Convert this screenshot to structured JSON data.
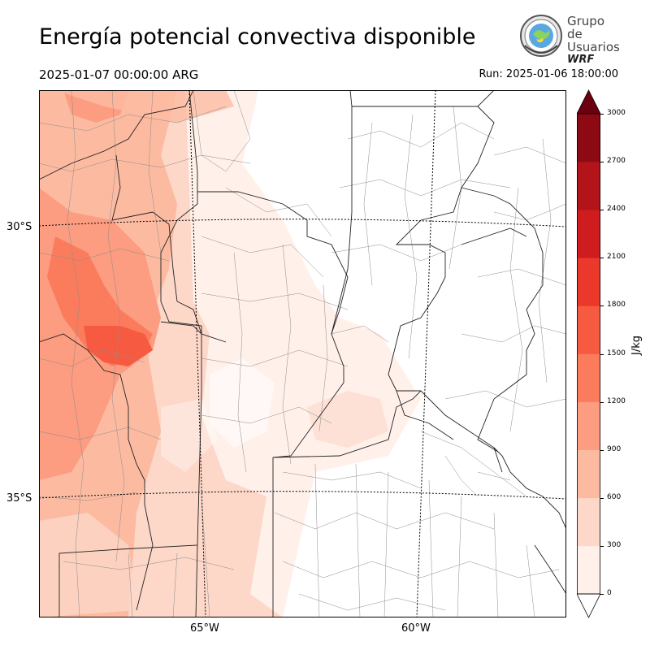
{
  "header": {
    "title": "Energía potencial convectiva disponible",
    "valid_time": "2025-01-07 00:00:00 ARG",
    "run_time": "Run: 2025-01-06 18:00:00"
  },
  "logo": {
    "line1": "Grupo de",
    "line2": "Usuarios",
    "line3": "WRF"
  },
  "map": {
    "lat_labels": [
      "30°S",
      "35°S"
    ],
    "lon_labels": [
      "65°W",
      "60°W"
    ]
  },
  "colorbar": {
    "unit": "J/kg",
    "ticks": [
      "0",
      "300",
      "600",
      "900",
      "1200",
      "1500",
      "1800",
      "2100",
      "2400",
      "2700",
      "3000"
    ],
    "colors": [
      "#fff0ea",
      "#fdd7c8",
      "#fcbba1",
      "#fc9c80",
      "#fb7c5c",
      "#f65b42",
      "#ea382b",
      "#cf1d1f",
      "#b21419",
      "#8d0a14"
    ],
    "overflow_color": "#6b0011"
  }
}
